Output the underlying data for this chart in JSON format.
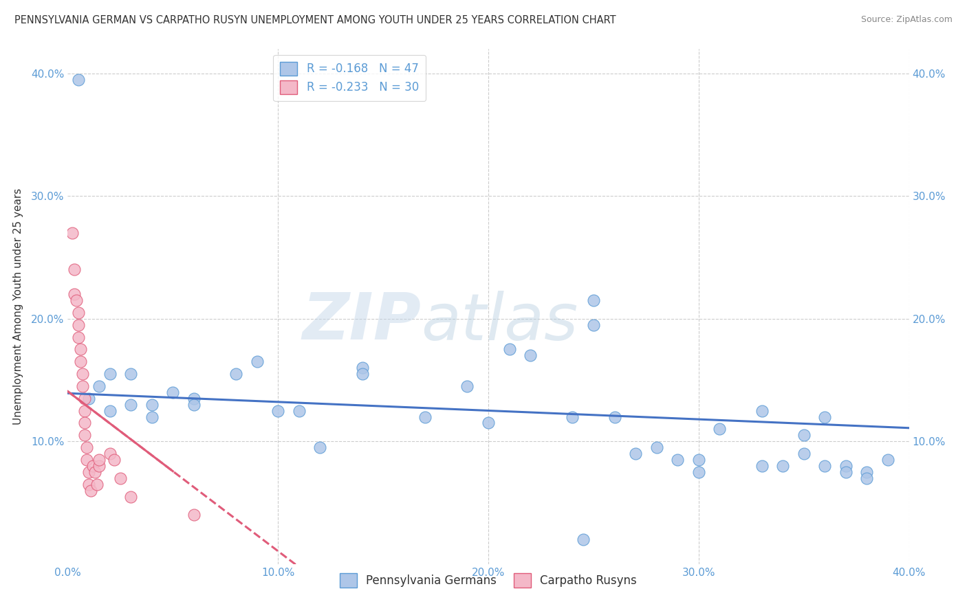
{
  "title": "PENNSYLVANIA GERMAN VS CARPATHO RUSYN UNEMPLOYMENT AMONG YOUTH UNDER 25 YEARS CORRELATION CHART",
  "source": "Source: ZipAtlas.com",
  "ylabel": "Unemployment Among Youth under 25 years",
  "xlim": [
    0.0,
    0.4
  ],
  "ylim": [
    0.0,
    0.42
  ],
  "xticks": [
    0.0,
    0.1,
    0.2,
    0.3,
    0.4
  ],
  "yticks": [
    0.1,
    0.2,
    0.3,
    0.4
  ],
  "xticklabels": [
    "0.0%",
    "10.0%",
    "20.0%",
    "30.0%",
    "40.0%"
  ],
  "yticklabels_left": [
    "10.0%",
    "20.0%",
    "30.0%",
    "40.0%"
  ],
  "yticklabels_right": [
    "10.0%",
    "20.0%",
    "30.0%",
    "40.0%"
  ],
  "legend_labels_bottom": [
    "Pennsylvania Germans",
    "Carpatho Rusyns"
  ],
  "blue_r": -0.168,
  "blue_n": 47,
  "pink_r": -0.233,
  "pink_n": 30,
  "blue_scatter": [
    [
      0.005,
      0.395
    ],
    [
      0.01,
      0.135
    ],
    [
      0.015,
      0.145
    ],
    [
      0.02,
      0.155
    ],
    [
      0.02,
      0.125
    ],
    [
      0.03,
      0.155
    ],
    [
      0.03,
      0.13
    ],
    [
      0.04,
      0.13
    ],
    [
      0.04,
      0.12
    ],
    [
      0.05,
      0.14
    ],
    [
      0.06,
      0.135
    ],
    [
      0.06,
      0.13
    ],
    [
      0.08,
      0.155
    ],
    [
      0.09,
      0.165
    ],
    [
      0.1,
      0.125
    ],
    [
      0.11,
      0.125
    ],
    [
      0.12,
      0.095
    ],
    [
      0.14,
      0.16
    ],
    [
      0.14,
      0.155
    ],
    [
      0.17,
      0.12
    ],
    [
      0.19,
      0.145
    ],
    [
      0.2,
      0.115
    ],
    [
      0.21,
      0.175
    ],
    [
      0.22,
      0.17
    ],
    [
      0.24,
      0.12
    ],
    [
      0.26,
      0.12
    ],
    [
      0.27,
      0.09
    ],
    [
      0.28,
      0.095
    ],
    [
      0.29,
      0.085
    ],
    [
      0.3,
      0.075
    ],
    [
      0.3,
      0.085
    ],
    [
      0.31,
      0.11
    ],
    [
      0.33,
      0.08
    ],
    [
      0.34,
      0.08
    ],
    [
      0.35,
      0.09
    ],
    [
      0.35,
      0.105
    ],
    [
      0.36,
      0.08
    ],
    [
      0.37,
      0.08
    ],
    [
      0.38,
      0.075
    ],
    [
      0.38,
      0.07
    ],
    [
      0.39,
      0.085
    ],
    [
      0.25,
      0.215
    ],
    [
      0.25,
      0.195
    ],
    [
      0.33,
      0.125
    ],
    [
      0.36,
      0.12
    ],
    [
      0.37,
      0.075
    ],
    [
      0.245,
      0.02
    ]
  ],
  "pink_scatter": [
    [
      0.002,
      0.27
    ],
    [
      0.003,
      0.24
    ],
    [
      0.003,
      0.22
    ],
    [
      0.004,
      0.215
    ],
    [
      0.005,
      0.205
    ],
    [
      0.005,
      0.195
    ],
    [
      0.005,
      0.185
    ],
    [
      0.006,
      0.175
    ],
    [
      0.006,
      0.165
    ],
    [
      0.007,
      0.155
    ],
    [
      0.007,
      0.145
    ],
    [
      0.008,
      0.135
    ],
    [
      0.008,
      0.125
    ],
    [
      0.008,
      0.115
    ],
    [
      0.008,
      0.105
    ],
    [
      0.009,
      0.095
    ],
    [
      0.009,
      0.085
    ],
    [
      0.01,
      0.075
    ],
    [
      0.01,
      0.065
    ],
    [
      0.011,
      0.06
    ],
    [
      0.012,
      0.08
    ],
    [
      0.013,
      0.075
    ],
    [
      0.014,
      0.065
    ],
    [
      0.015,
      0.08
    ],
    [
      0.015,
      0.085
    ],
    [
      0.02,
      0.09
    ],
    [
      0.022,
      0.085
    ],
    [
      0.025,
      0.07
    ],
    [
      0.03,
      0.055
    ],
    [
      0.06,
      0.04
    ]
  ],
  "background_color": "#ffffff",
  "grid_color": "#cccccc",
  "title_color": "#333333",
  "source_color": "#888888",
  "tick_color": "#5b9bd5",
  "blue_dot_color": "#aec6e8",
  "blue_dot_edge": "#5b9bd5",
  "pink_dot_color": "#f4b8c8",
  "pink_dot_edge": "#e05c7a",
  "blue_line_color": "#4472c4",
  "pink_line_color": "#e05c7a",
  "watermark_zip": "ZIP",
  "watermark_atlas": "atlas",
  "watermark_color_zip": "#c0d4e8",
  "watermark_color_atlas": "#b8cfe0",
  "watermark_alpha": 0.45
}
